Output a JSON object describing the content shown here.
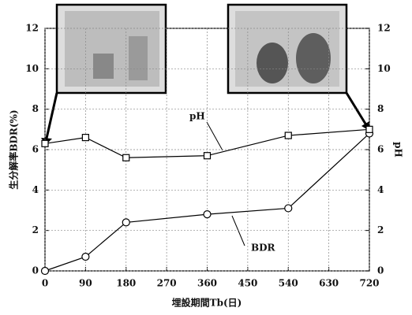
{
  "chart_data": {
    "type": "line",
    "x": [
      0,
      90,
      180,
      360,
      540,
      720
    ],
    "series": [
      {
        "name": "BDR",
        "color": "#000000",
        "marker": "circle",
        "values": [
          0,
          0.7,
          2.4,
          2.8,
          3.1,
          6.8
        ]
      },
      {
        "name": "pH",
        "color": "#000000",
        "marker": "square",
        "axis": "y2",
        "values": [
          6.3,
          6.6,
          5.6,
          5.7,
          6.7,
          7.0
        ]
      }
    ],
    "xlabel": "埋設期間Tb(日)",
    "ylabel": "生分解率BDR(%)",
    "y2label": "pH",
    "xlim": [
      0,
      720
    ],
    "xticks": [
      0,
      90,
      180,
      270,
      360,
      450,
      540,
      630,
      720
    ],
    "ylim": [
      0,
      12
    ],
    "yticks": [
      0,
      2,
      4,
      6,
      8,
      10,
      12
    ],
    "y2lim": [
      0,
      12
    ],
    "y2ticks": [
      0,
      2,
      4,
      6,
      8,
      10,
      12
    ],
    "grid": true
  }
}
